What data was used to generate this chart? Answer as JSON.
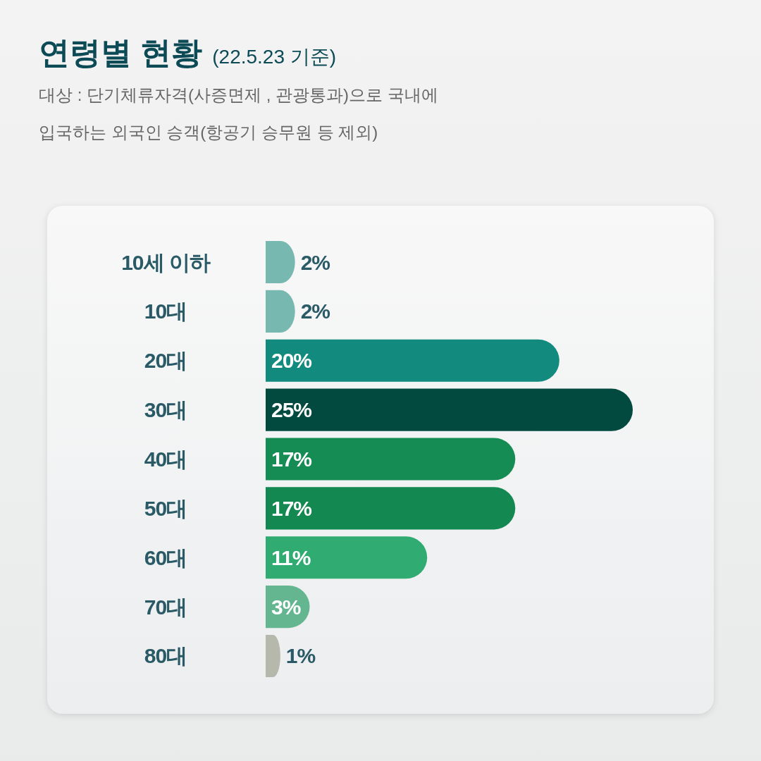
{
  "chart_data": {
    "type": "bar",
    "orientation": "horizontal",
    "title": "연령별 현황",
    "subtitle": "(22.5.23 기준)",
    "annotations": [
      "대상 : 단기체류자격(사증면제 , 관광통과)으로 국내에",
      "입국하는 외국인 승객(항공기 승무원 등 제외)"
    ],
    "categories": [
      "10세 이하",
      "10대",
      "20대",
      "30대",
      "40대",
      "50대",
      "60대",
      "70대",
      "80대"
    ],
    "values": [
      2,
      2,
      20,
      25,
      17,
      17,
      11,
      3,
      1
    ],
    "colors": [
      "#77b8b0",
      "#77b8b0",
      "#138a7e",
      "#024a40",
      "#168c55",
      "#138850",
      "#30ab72",
      "#64b690",
      "#b5b8aa"
    ],
    "value_labels": [
      "2%",
      "2%",
      "20%",
      "25%",
      "17%",
      "17%",
      "11%",
      "3%",
      "1%"
    ],
    "tick_labels": "y"
  }
}
